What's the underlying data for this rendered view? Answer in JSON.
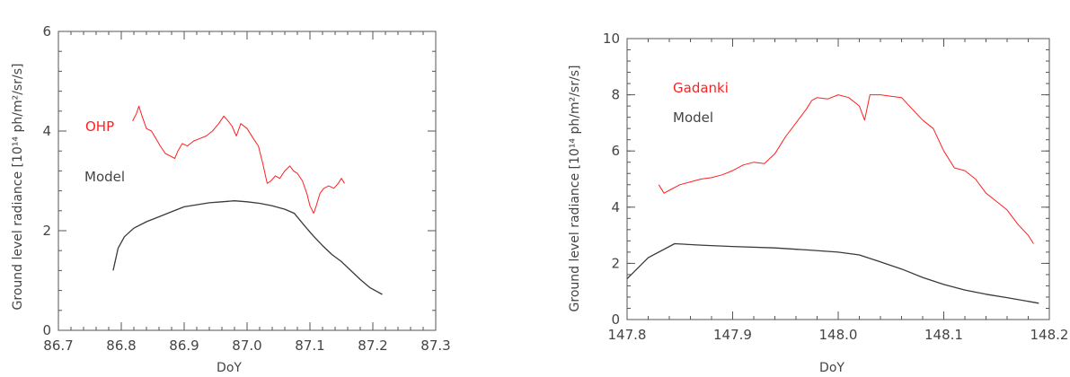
{
  "colors": {
    "observed": "#ff2020",
    "model": "#3a3a3a",
    "axis": "#555555",
    "text": "#444444"
  },
  "chart_data": [
    {
      "type": "line",
      "xlabel": "DoY",
      "ylabel": "Ground level radiance [10¹⁴ ph/m²/sr/s]",
      "xlim": [
        86.7,
        87.3
      ],
      "ylim": [
        0,
        6
      ],
      "xticks": [
        86.7,
        86.8,
        86.9,
        87.0,
        87.1,
        87.2,
        87.3
      ],
      "xtick_labels": [
        "86.7",
        "86.8",
        "86.9",
        "87.0",
        "87.1",
        "87.2",
        "87.3"
      ],
      "yticks": [
        0,
        2,
        4,
        6
      ],
      "ytick_labels": [
        "0",
        "2",
        "4",
        "6"
      ],
      "legend": [
        "OHP",
        "Model"
      ],
      "series": [
        {
          "name": "OHP",
          "color": "#ff2020",
          "x": [
            86.818,
            86.824,
            86.828,
            86.833,
            86.84,
            86.848,
            86.855,
            86.862,
            86.87,
            86.878,
            86.885,
            86.89,
            86.897,
            86.905,
            86.915,
            86.925,
            86.935,
            86.945,
            86.955,
            86.963,
            86.97,
            86.976,
            86.983,
            86.99,
            87.0,
            87.01,
            87.018,
            87.025,
            87.032,
            87.038,
            87.045,
            87.052,
            87.06,
            87.068,
            87.074,
            87.08,
            87.088,
            87.095,
            87.1,
            87.106,
            87.11,
            87.116,
            87.122,
            87.13,
            87.138,
            87.145,
            87.15,
            87.155
          ],
          "y": [
            4.2,
            4.35,
            4.5,
            4.3,
            4.05,
            4.0,
            3.85,
            3.7,
            3.55,
            3.5,
            3.45,
            3.6,
            3.75,
            3.7,
            3.8,
            3.85,
            3.9,
            4.0,
            4.15,
            4.3,
            4.2,
            4.1,
            3.9,
            4.15,
            4.05,
            3.85,
            3.7,
            3.35,
            2.95,
            3.0,
            3.1,
            3.05,
            3.2,
            3.3,
            3.2,
            3.15,
            3.0,
            2.75,
            2.5,
            2.35,
            2.5,
            2.75,
            2.85,
            2.9,
            2.85,
            2.95,
            3.05,
            2.95
          ]
        },
        {
          "name": "Model",
          "color": "#3a3a3a",
          "x": [
            86.787,
            86.795,
            86.805,
            86.82,
            86.84,
            86.86,
            86.88,
            86.9,
            86.92,
            86.94,
            86.96,
            86.98,
            87.0,
            87.02,
            87.04,
            87.06,
            87.075,
            87.09,
            87.105,
            87.12,
            87.135,
            87.15,
            87.165,
            87.18,
            87.195,
            87.215
          ],
          "y": [
            1.2,
            1.65,
            1.88,
            2.05,
            2.18,
            2.28,
            2.38,
            2.48,
            2.52,
            2.56,
            2.58,
            2.6,
            2.58,
            2.55,
            2.5,
            2.43,
            2.35,
            2.12,
            1.9,
            1.7,
            1.52,
            1.38,
            1.2,
            1.02,
            0.86,
            0.72
          ]
        }
      ]
    },
    {
      "type": "line",
      "xlabel": "DoY",
      "ylabel": "Ground level radiance [10¹⁴ ph/m²/sr/s]",
      "xlim": [
        147.8,
        148.2
      ],
      "ylim": [
        0,
        10
      ],
      "xticks": [
        147.8,
        147.9,
        148.0,
        148.1,
        148.2
      ],
      "xtick_labels": [
        "147.8",
        "147.9",
        "148.0",
        "148.1",
        "148.2"
      ],
      "yticks": [
        0,
        2,
        4,
        6,
        8,
        10
      ],
      "ytick_labels": [
        "0",
        "2",
        "4",
        "6",
        "8",
        "10"
      ],
      "legend": [
        "Gadanki",
        "Model"
      ],
      "series": [
        {
          "name": "Gadanki",
          "color": "#ff2020",
          "x": [
            147.83,
            147.835,
            147.84,
            147.85,
            147.86,
            147.87,
            147.88,
            147.89,
            147.9,
            147.91,
            147.92,
            147.93,
            147.94,
            147.95,
            147.96,
            147.97,
            147.975,
            147.98,
            147.99,
            148.0,
            148.01,
            148.02,
            148.025,
            148.03,
            148.04,
            148.05,
            148.06,
            148.07,
            148.08,
            148.09,
            148.1,
            148.11,
            148.12,
            148.13,
            148.14,
            148.15,
            148.16,
            148.17,
            148.18,
            148.185
          ],
          "y": [
            4.8,
            4.5,
            4.6,
            4.8,
            4.9,
            5.0,
            5.05,
            5.15,
            5.3,
            5.5,
            5.6,
            5.55,
            5.9,
            6.5,
            7.0,
            7.5,
            7.8,
            7.9,
            7.85,
            8.0,
            7.9,
            7.6,
            7.1,
            8.0,
            8.0,
            7.95,
            7.9,
            7.5,
            7.1,
            6.8,
            6.0,
            5.4,
            5.3,
            5.0,
            4.5,
            4.2,
            3.9,
            3.4,
            3.0,
            2.7
          ]
        },
        {
          "name": "Model",
          "color": "#3a3a3a",
          "x": [
            147.8,
            147.82,
            147.845,
            147.87,
            147.9,
            147.94,
            147.97,
            148.0,
            148.02,
            148.04,
            148.06,
            148.08,
            148.1,
            148.12,
            148.14,
            148.16,
            148.19
          ],
          "y": [
            1.45,
            2.2,
            2.7,
            2.65,
            2.6,
            2.55,
            2.48,
            2.4,
            2.3,
            2.05,
            1.8,
            1.5,
            1.25,
            1.05,
            0.9,
            0.78,
            0.58
          ]
        }
      ]
    }
  ]
}
